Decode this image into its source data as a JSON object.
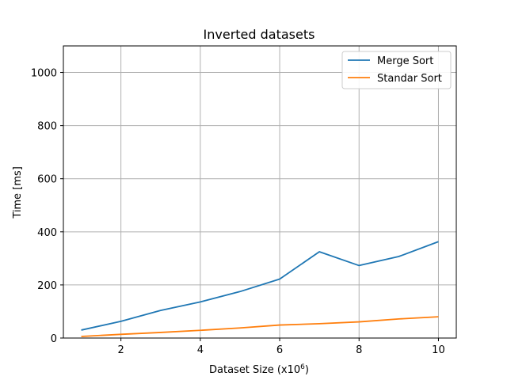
{
  "chart_data": {
    "type": "line",
    "title": "Inverted datasets",
    "xlabel": "Dataset Size (x10",
    "xlabel_sup": "6",
    "xlabel_suffix": ")",
    "ylabel": "Time [ms]",
    "x": [
      1,
      2,
      3,
      4,
      5,
      6,
      7,
      8,
      9,
      10
    ],
    "xlim": [
      0.55,
      10.45
    ],
    "ylim": [
      0,
      1100
    ],
    "xticks": [
      2,
      4,
      6,
      8,
      10
    ],
    "yticks": [
      0,
      200,
      400,
      600,
      800,
      1000
    ],
    "grid": true,
    "legend_position": "top-right",
    "series": [
      {
        "name": "Merge Sort",
        "color": "#1f77b4",
        "values": [
          30,
          63,
          104,
          136,
          175,
          222,
          325,
          273,
          307,
          363
        ]
      },
      {
        "name": "Standar Sort",
        "color": "#ff7f0e",
        "values": [
          6,
          14,
          21,
          29,
          38,
          49,
          54,
          61,
          72,
          80
        ]
      }
    ]
  }
}
